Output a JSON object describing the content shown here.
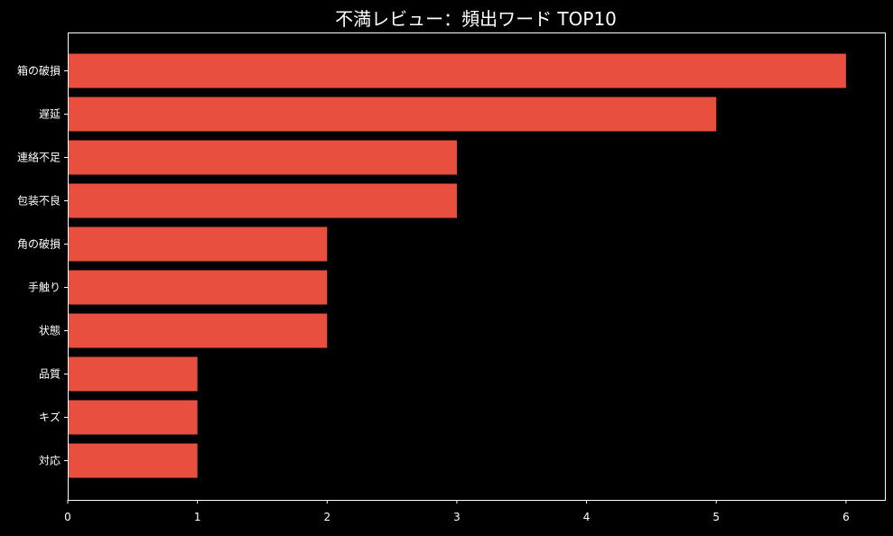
{
  "chart_data": {
    "type": "bar",
    "orientation": "horizontal",
    "title": "不満レビュー：頻出ワード TOP10",
    "xlabel": "",
    "ylabel": "",
    "categories": [
      "箱の破損",
      "遅延",
      "連絡不足",
      "包装不良",
      "角の破損",
      "手触り",
      "状態",
      "品質",
      "キズ",
      "対応"
    ],
    "values": [
      6,
      5,
      3,
      3,
      2,
      2,
      2,
      1,
      1,
      1
    ],
    "xlim": [
      0,
      6.3
    ],
    "xticks": [
      "0",
      "1",
      "2",
      "3",
      "4",
      "5",
      "6"
    ],
    "grid": false,
    "legend": "none",
    "colors": {
      "background": "#000000",
      "bar": "#E94F3F",
      "axis": "#ffffff",
      "text": "#ffffff"
    }
  }
}
